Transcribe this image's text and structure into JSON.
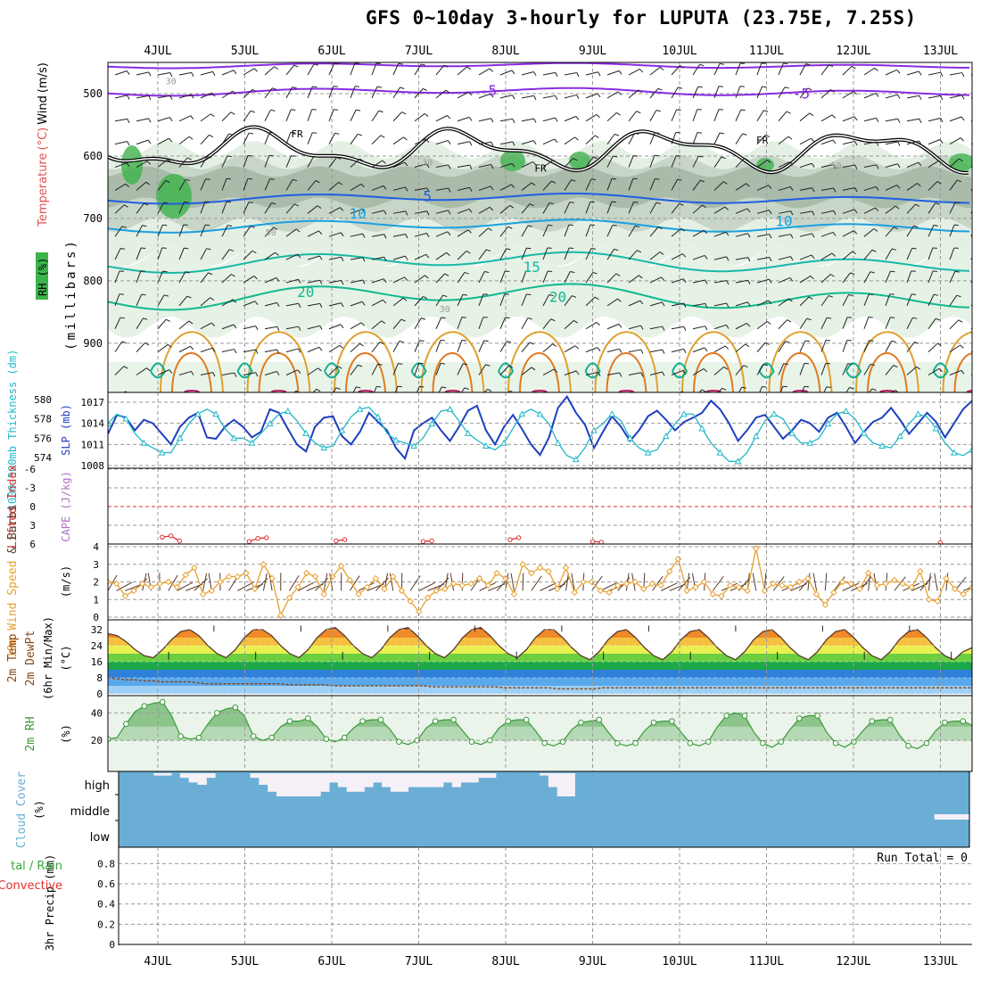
{
  "title": "GFS 0~10day 3-hourly for LUPUTA (23.75E, 7.25S)",
  "dates": [
    "4JUL",
    "5JUL",
    "6JUL",
    "7JUL",
    "8JUL",
    "9JUL",
    "10JUL",
    "11JUL",
    "12JUL",
    "13JUL"
  ],
  "colors": {
    "grid": "#999999",
    "axis": "#000000",
    "rh_green": "#3cb44b",
    "temp_purple": "#8a2be2",
    "slp_blue": "#1f3fbf",
    "thick_cyan": "#21b8c8",
    "wind_orange": "#e8a030",
    "rh2m_green": "#3a9a3a",
    "cloud_blue": "#6aaed6",
    "precip_red": "#e03030",
    "dewpt_brown": "#8b4513"
  },
  "chart_data": [
    {
      "type": "heatmap",
      "panel": "upper-air",
      "ylabel_parts": [
        "Temperature",
        "(°C)",
        "Wind",
        "(m/s)",
        "RH",
        "(%)",
        "(millibars)"
      ],
      "yticks": [
        500,
        600,
        700,
        800,
        900
      ],
      "ylim": [
        1000,
        450
      ],
      "contour_labels": {
        "temperature": [
          {
            "label": "-5",
            "x": 3.8,
            "y": 503
          },
          {
            "label": "-5",
            "x": 7.4,
            "y": 508
          },
          {
            "label": "5",
            "x": 3.1,
            "y": 672
          },
          {
            "label": "10",
            "x": 2.3,
            "y": 700
          },
          {
            "label": "10",
            "x": 7.2,
            "y": 712
          },
          {
            "label": "15",
            "x": 4.3,
            "y": 786
          },
          {
            "label": "20",
            "x": 1.7,
            "y": 826
          },
          {
            "label": "20",
            "x": 4.6,
            "y": 834
          }
        ],
        "freezing_level": [
          {
            "label": "FR",
            "x": 1.6,
            "y": 570
          },
          {
            "label": "FR",
            "x": 4.4,
            "y": 625
          },
          {
            "label": "FR",
            "x": 6.95,
            "y": 580
          }
        ],
        "rh": [
          {
            "label": "30",
            "x": 0.15,
            "y": 485
          },
          {
            "label": "30",
            "x": 3.1,
            "y": 615
          },
          {
            "label": "30",
            "x": 3.3,
            "y": 850
          },
          {
            "label": "50",
            "x": 1.3,
            "y": 727
          },
          {
            "label": "50",
            "x": 7.8,
            "y": 620
          }
        ]
      }
    },
    {
      "type": "line",
      "panel": "slp-thickness",
      "y_left_label": "1000-500mb Thickness (dm)",
      "y_right_label": "SLP (mb)",
      "yticks_thickness": [
        574,
        576,
        578,
        580
      ],
      "yticks_slp": [
        1008,
        1011,
        1014,
        1017
      ],
      "series": [
        {
          "name": "SLP (mb)",
          "axis": "slp",
          "values": [
            1012.5,
            1015.2,
            1014.8,
            1013.0,
            1014.5,
            1014.0,
            1012.5,
            1011.0,
            1013.5,
            1014.8,
            1015.5,
            1012.0,
            1011.8,
            1013.5,
            1014.5,
            1013.5,
            1012.0,
            1012.8,
            1016.0,
            1015.5,
            1013.2,
            1011.0,
            1010.0,
            1013.5,
            1014.8,
            1015.0,
            1012.2,
            1011.0,
            1012.8,
            1015.5,
            1014.2,
            1013.0,
            1010.5,
            1009.0,
            1013.0,
            1014.0,
            1014.8,
            1013.0,
            1011.5,
            1013.5,
            1015.8,
            1016.5,
            1013.0,
            1011.0,
            1013.5,
            1015.2,
            1013.2,
            1011.0,
            1009.5,
            1012.0,
            1016.2,
            1017.8,
            1015.5,
            1013.8,
            1010.5,
            1012.8,
            1015.0,
            1013.5,
            1011.5,
            1013.0,
            1015.0,
            1015.8,
            1014.5,
            1013.0,
            1014.2,
            1014.8,
            1015.5,
            1017.2,
            1016.0,
            1014.0,
            1011.5,
            1013.0,
            1014.8,
            1015.2,
            1013.5,
            1011.8,
            1013.0,
            1014.5,
            1014.0,
            1012.8,
            1014.8,
            1015.5,
            1013.5,
            1011.2,
            1012.8,
            1014.2,
            1014.8,
            1016.2,
            1014.5,
            1012.5,
            1014.0,
            1015.5,
            1014.2,
            1012.0,
            1014.0,
            1016.0,
            1017.2
          ]
        },
        {
          "name": "Thickness (dm)",
          "axis": "thickness",
          "values": [
            577.5,
            578.5,
            578.0,
            576.5,
            575.5,
            575.0,
            574.5,
            574.5,
            576.0,
            577.5,
            578.5,
            579.0,
            578.5,
            577.0,
            576.0,
            576.0,
            575.5,
            576.5,
            577.5,
            578.5,
            578.8,
            577.8,
            576.5,
            575.5,
            575.0,
            575.2,
            576.8,
            578.2,
            579.0,
            579.2,
            578.2,
            576.5,
            575.8,
            575.5,
            575.2,
            576.0,
            577.5,
            578.8,
            579.0,
            577.8,
            576.5,
            575.8,
            575.2,
            574.8,
            575.5,
            577.0,
            578.5,
            579.0,
            578.5,
            577.5,
            575.5,
            574.2,
            573.8,
            575.0,
            576.8,
            577.5,
            578.5,
            577.8,
            576.0,
            575.0,
            574.5,
            574.8,
            576.2,
            577.5,
            578.5,
            578.5,
            577.0,
            575.5,
            574.5,
            573.6,
            573.6,
            574.5,
            576.2,
            577.8,
            578.5,
            578.0,
            576.5,
            575.5,
            575.5,
            576.0,
            577.5,
            578.5,
            578.8,
            578.0,
            576.5,
            575.5,
            575.2,
            575.0,
            576.2,
            577.5,
            578.5,
            578.2,
            577.0,
            575.5,
            574.5,
            574.2,
            574.8
          ]
        }
      ]
    },
    {
      "type": "line",
      "panel": "li-cape",
      "y_left_label": "Lifted Index",
      "y_right_label": "CAPE (J/kg)",
      "yticks": [
        -6,
        -3,
        0,
        3,
        6
      ],
      "yticklabels": [
        "-6",
        "-3",
        "0",
        "3",
        "6"
      ],
      "series": [
        {
          "name": "Lifted Index",
          "values": [
            {
              "x": 0.05,
              "y": 4.9
            },
            {
              "x": 0.15,
              "y": 4.7
            },
            {
              "x": 0.25,
              "y": 5.5
            },
            {
              "x": 1.05,
              "y": 5.6
            },
            {
              "x": 1.15,
              "y": 5.1
            },
            {
              "x": 1.25,
              "y": 5.0
            },
            {
              "x": 2.05,
              "y": 5.5
            },
            {
              "x": 2.15,
              "y": 5.3
            },
            {
              "x": 3.05,
              "y": 5.6
            },
            {
              "x": 3.15,
              "y": 5.5
            },
            {
              "x": 4.05,
              "y": 5.3
            },
            {
              "x": 4.15,
              "y": 5.0
            },
            {
              "x": 5.0,
              "y": 5.6
            },
            {
              "x": 5.1,
              "y": 5.7
            },
            {
              "x": 9.0,
              "y": 5.8
            }
          ]
        }
      ]
    },
    {
      "type": "line",
      "panel": "wind10m",
      "ylabel": "10m Wind Speed & Barbs (m/s)",
      "yticks": [
        0,
        1,
        2,
        3,
        4
      ],
      "series": [
        {
          "name": "10m Wind Speed",
          "values": [
            2.0,
            1.9,
            1.2,
            1.5,
            1.9,
            1.7,
            1.9,
            2.0,
            1.7,
            2.4,
            2.8,
            1.3,
            1.5,
            2.0,
            2.3,
            2.3,
            2.5,
            1.6,
            3.0,
            2.2,
            0.1,
            1.1,
            1.7,
            2.5,
            2.3,
            1.3,
            2.3,
            2.9,
            2.1,
            1.3,
            1.7,
            2.2,
            1.6,
            2.3,
            1.5,
            0.9,
            0.3,
            1.1,
            1.5,
            1.6,
            1.9,
            1.8,
            1.9,
            2.2,
            1.8,
            2.5,
            2.2,
            1.3,
            3.0,
            2.5,
            2.8,
            2.6,
            1.6,
            2.8,
            1.4,
            2.0,
            2.0,
            1.5,
            1.4,
            1.8,
            1.9,
            2.0,
            1.6,
            1.9,
            1.8,
            2.6,
            3.3,
            1.5,
            1.7,
            2.0,
            1.3,
            1.2,
            1.8,
            1.7,
            1.5,
            3.9,
            1.5,
            1.9,
            1.8,
            1.7,
            2.0,
            2.2,
            1.3,
            0.7,
            1.4,
            2.0,
            1.9,
            1.6,
            2.5,
            1.8,
            1.9,
            2.1,
            1.9,
            1.7,
            2.6,
            1.0,
            0.9,
            2.2,
            1.6,
            1.3,
            1.7
          ]
        }
      ]
    },
    {
      "type": "area",
      "panel": "temp2m",
      "ylabel": "2m Temp 2m DewPt (6hr Min/Max) (°C)",
      "yticks": [
        0,
        8,
        16,
        24,
        32
      ],
      "series": [
        {
          "name": "2m Temp",
          "values": [
            30,
            29,
            26,
            22,
            19,
            18,
            22,
            27,
            31,
            32,
            29,
            24,
            20,
            18,
            22,
            28,
            32,
            32,
            29,
            24,
            20,
            18,
            22,
            28,
            32,
            33,
            29,
            24,
            20,
            18,
            22,
            28,
            32,
            33,
            29,
            24,
            20,
            18,
            22,
            28,
            32,
            33,
            29,
            24,
            20,
            18,
            22,
            28,
            32,
            32,
            28,
            23,
            19,
            17,
            21,
            27,
            31,
            32,
            28,
            23,
            19,
            17,
            21,
            27,
            31,
            32,
            28,
            23,
            19,
            17,
            21,
            27,
            31,
            32,
            28,
            23,
            19,
            17,
            21,
            27,
            31,
            32,
            28,
            23,
            19,
            17,
            21,
            27,
            31,
            32,
            28,
            23,
            19,
            17,
            21,
            23
          ]
        },
        {
          "name": "2m DewPt",
          "values": [
            8,
            7.5,
            7,
            7,
            6.5,
            6.5,
            6,
            6,
            6,
            6,
            5.5,
            5,
            5,
            5,
            5,
            5,
            5,
            5,
            5,
            5,
            4.5,
            4.5,
            4.5,
            4.5,
            4.5,
            4,
            4,
            4,
            4,
            4,
            4,
            4,
            4,
            4,
            4,
            4,
            3.5,
            3.5,
            3.5,
            3.5,
            3.5,
            3.5,
            3.5,
            3.5,
            3,
            3,
            3,
            3,
            3,
            3,
            2.5,
            2.5,
            2.5,
            2.5,
            2.5,
            3,
            3,
            3,
            3,
            3,
            3,
            3,
            3,
            3,
            3,
            3,
            3,
            3,
            3,
            3,
            3,
            3,
            3,
            3,
            3,
            3,
            3,
            3,
            3,
            3,
            3,
            3,
            3,
            3,
            3,
            3,
            3,
            3,
            3,
            3,
            3,
            3,
            3,
            3,
            3,
            3,
            3
          ]
        }
      ]
    },
    {
      "type": "area",
      "panel": "rh2m",
      "ylabel": "2m RH (%)",
      "yticks": [
        20,
        40
      ],
      "series": [
        {
          "name": "2m RH",
          "values": [
            21,
            22,
            32,
            41,
            45,
            47,
            48,
            38,
            23,
            21,
            22,
            32,
            40,
            43,
            44,
            38,
            23,
            20,
            22,
            30,
            34,
            34,
            36,
            30,
            21,
            19,
            22,
            29,
            34,
            35,
            35,
            28,
            19,
            17,
            20,
            29,
            34,
            35,
            35,
            27,
            19,
            17,
            20,
            29,
            34,
            35,
            35,
            27,
            18,
            16,
            19,
            28,
            33,
            34,
            35,
            26,
            18,
            16,
            18,
            27,
            33,
            34,
            34,
            26,
            18,
            16,
            19,
            30,
            38,
            40,
            38,
            26,
            18,
            15,
            19,
            28,
            36,
            38,
            38,
            26,
            18,
            15,
            19,
            27,
            34,
            35,
            35,
            24,
            16,
            14,
            18,
            27,
            33,
            34,
            34,
            31
          ]
        }
      ]
    },
    {
      "type": "area",
      "panel": "cloud",
      "ylabel": "Cloud Cover (%)",
      "levels": [
        "high",
        "middle",
        "low"
      ],
      "series": [
        {
          "name": "High cloud cover (%)",
          "values": [
            0,
            0,
            0,
            0,
            5,
            5,
            0,
            10,
            20,
            25,
            10,
            0,
            0,
            0,
            0,
            10,
            25,
            40,
            50,
            50,
            50,
            50,
            50,
            40,
            20,
            30,
            40,
            40,
            30,
            20,
            30,
            40,
            40,
            30,
            30,
            30,
            30,
            20,
            30,
            20,
            20,
            10,
            10,
            0,
            0,
            0,
            0,
            0,
            5,
            30,
            50,
            50,
            0,
            0,
            0,
            0,
            0,
            0,
            0,
            0,
            0,
            0,
            0,
            0,
            0,
            0,
            0,
            0,
            0,
            0,
            0,
            0,
            0,
            0,
            0,
            0,
            0,
            0,
            0,
            0,
            0,
            0,
            0,
            0,
            0,
            0,
            0,
            0,
            0,
            0,
            0,
            0,
            0,
            0,
            0,
            0,
            0
          ]
        },
        {
          "name": "Middle cloud cover (%)",
          "values": [
            0,
            0,
            0,
            0,
            0,
            0,
            0,
            0,
            0,
            0,
            0,
            0,
            0,
            0,
            0,
            0,
            0,
            0,
            0,
            0,
            0,
            0,
            0,
            0,
            0,
            0,
            0,
            0,
            0,
            0,
            0,
            0,
            0,
            0,
            0,
            0,
            0,
            0,
            0,
            0,
            0,
            0,
            0,
            0,
            0,
            0,
            0,
            0,
            0,
            0,
            0,
            0,
            0,
            0,
            0,
            0,
            0,
            0,
            0,
            0,
            0,
            0,
            0,
            0,
            0,
            0,
            0,
            0,
            0,
            0,
            0,
            0,
            0,
            0,
            0,
            0,
            0,
            0,
            0,
            0,
            0,
            0,
            0,
            0,
            0,
            0,
            0,
            0,
            0,
            0,
            0,
            0,
            0,
            30,
            30,
            30,
            30
          ]
        }
      ]
    },
    {
      "type": "line",
      "panel": "precip",
      "ylabel_parts": [
        "3hr Precip (mm)",
        "tal / Rain",
        "Convective"
      ],
      "yticks": [
        0,
        0.2,
        0.4,
        0.6,
        0.8
      ],
      "yticklabels": [
        "0",
        "0.2",
        "0.4",
        "0.6",
        "0.8"
      ],
      "run_total": "Run Total = 0",
      "series": [
        {
          "name": "Total / Rain",
          "values": [
            0
          ]
        },
        {
          "name": "Convective",
          "values": [
            0
          ]
        }
      ]
    }
  ]
}
